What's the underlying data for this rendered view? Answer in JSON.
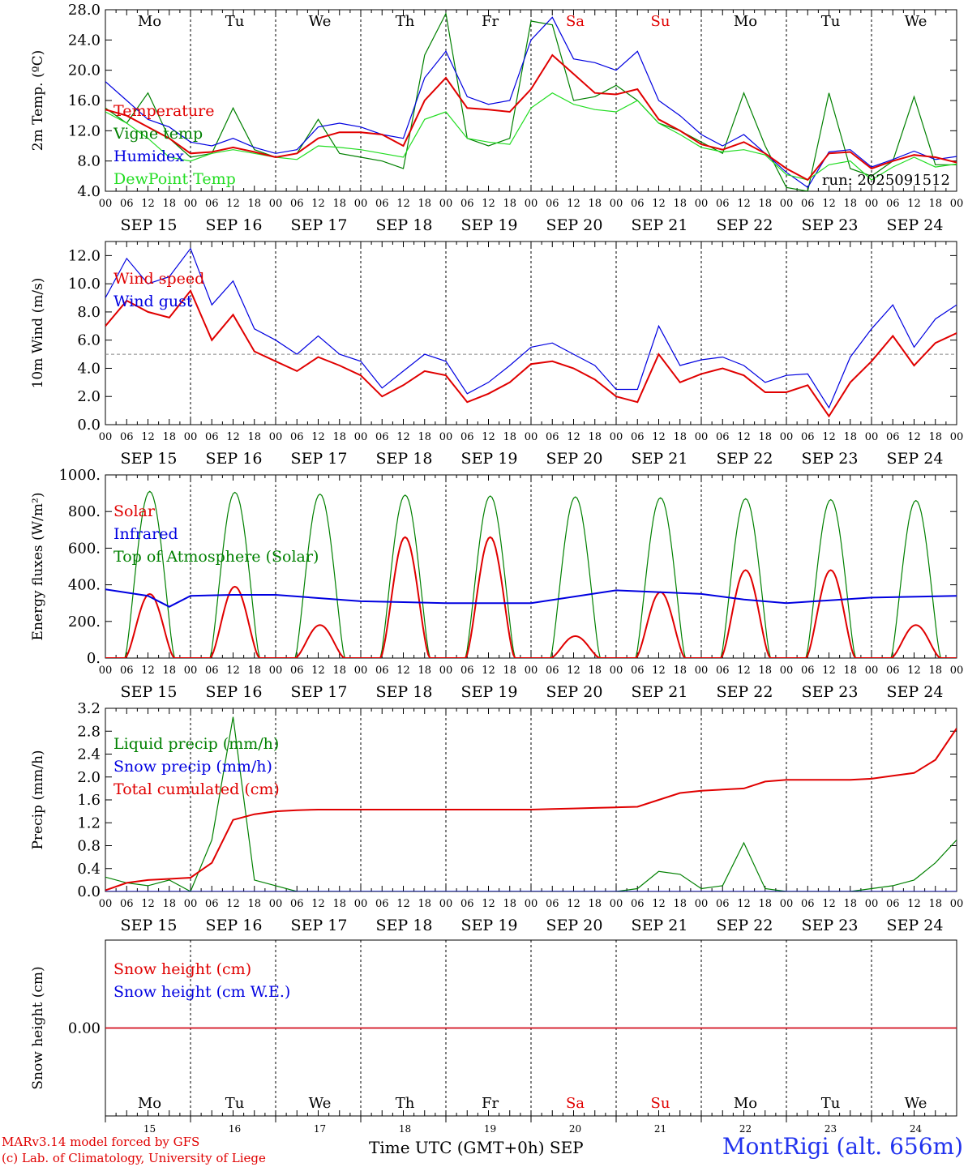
{
  "footer": {
    "credit_line1": "MARv3.14 model forced by GFS",
    "credit_line2": "(c) Lab. of Climatology, University of Liege",
    "x_title": "Time UTC (GMT+0h) SEP",
    "station": "MontRigi (alt. 656m)"
  },
  "day_abbrev": [
    "Mo",
    "Tu",
    "We",
    "Th",
    "Fr",
    "Sa",
    "Su",
    "Mo",
    "Tu",
    "We"
  ],
  "day_abbrev_colors": [
    "#000000",
    "#000000",
    "#000000",
    "#000000",
    "#000000",
    "#e00000",
    "#e00000",
    "#000000",
    "#000000",
    "#000000"
  ],
  "date_labels": [
    "SEP 15",
    "SEP 16",
    "SEP 17",
    "SEP 18",
    "SEP 19",
    "SEP 20",
    "SEP 21",
    "SEP 22",
    "SEP 23",
    "SEP 24"
  ],
  "bottom_day_numbers": [
    "15",
    "16",
    "17",
    "18",
    "19",
    "20",
    "21",
    "22",
    "23",
    "24"
  ],
  "hour_ticks": [
    "00",
    "06",
    "12",
    "18"
  ],
  "chart_data": [
    {
      "type": "line",
      "ylabel": "2m Temp. (ºC)",
      "ylim": [
        4.0,
        28.0
      ],
      "yticks": [
        "4.0",
        "8.0",
        "12.0",
        "16.0",
        "20.0",
        "24.0",
        "28.0"
      ],
      "annotation": "run: 2025091512",
      "x_hours": [
        0,
        6,
        12,
        18,
        24,
        30,
        36,
        42,
        48,
        54,
        60,
        66,
        72,
        78,
        84,
        90,
        96,
        102,
        108,
        114,
        120,
        126,
        132,
        138,
        144,
        150,
        156,
        162,
        168,
        174,
        180,
        186,
        192,
        198,
        204,
        210,
        216,
        222,
        228,
        234,
        240
      ],
      "series": [
        {
          "name": "Temperature",
          "color": "#e00000",
          "width": 2,
          "values": [
            14.8,
            14.0,
            12.5,
            11.0,
            9.0,
            9.2,
            9.8,
            9.2,
            8.5,
            9.0,
            11.0,
            11.8,
            11.8,
            11.5,
            10.0,
            16.0,
            19.0,
            15.0,
            14.8,
            14.5,
            17.5,
            22.0,
            19.5,
            17.0,
            16.8,
            17.5,
            13.5,
            12.0,
            10.2,
            9.5,
            10.5,
            9.0,
            7.0,
            5.5,
            9.0,
            9.2,
            7.0,
            8.0,
            8.8,
            8.5,
            7.8
          ]
        },
        {
          "name": "Vigne temp",
          "color": "#008000",
          "width": 1.2,
          "values": [
            15.0,
            13.0,
            17.0,
            11.0,
            8.5,
            9.0,
            15.0,
            9.5,
            8.5,
            9.0,
            13.5,
            9.0,
            8.5,
            8.0,
            7.0,
            22.0,
            27.5,
            11.0,
            10.0,
            11.0,
            26.5,
            26.0,
            16.0,
            16.5,
            18.0,
            16.0,
            13.0,
            12.0,
            10.5,
            9.0,
            17.0,
            10.0,
            4.5,
            4.0,
            17.0,
            7.0,
            6.0,
            8.0,
            16.5,
            7.5,
            7.5
          ]
        },
        {
          "name": "Humidex",
          "color": "#0000e0",
          "width": 1.2,
          "values": [
            18.5,
            16.0,
            13.5,
            12.5,
            10.5,
            10.0,
            11.0,
            9.8,
            9.0,
            9.5,
            12.5,
            13.0,
            12.5,
            11.5,
            11.0,
            19.0,
            22.5,
            16.5,
            15.5,
            16.0,
            24.0,
            27.0,
            21.5,
            21.0,
            20.0,
            22.5,
            16.0,
            14.0,
            11.5,
            10.0,
            11.5,
            9.0,
            6.5,
            4.5,
            9.2,
            9.5,
            7.2,
            8.2,
            9.3,
            8.2,
            8.6
          ]
        },
        {
          "name": "DewPoint Temp",
          "color": "#22dd22",
          "width": 1.2,
          "values": [
            14.5,
            13.0,
            11.0,
            8.5,
            8.0,
            9.0,
            9.5,
            9.0,
            8.5,
            8.2,
            10.0,
            9.8,
            9.5,
            9.0,
            8.5,
            13.5,
            14.5,
            11.0,
            10.5,
            10.2,
            15.0,
            17.0,
            15.5,
            14.8,
            14.5,
            16.0,
            13.0,
            11.5,
            9.8,
            9.2,
            9.5,
            8.8,
            6.2,
            5.5,
            7.5,
            8.0,
            5.5,
            7.2,
            8.5,
            7.2,
            7.6
          ]
        }
      ]
    },
    {
      "type": "line",
      "ylabel": "10m Wind (m/s)",
      "ylim": [
        0.0,
        13.0
      ],
      "yticks": [
        "0.0",
        "2.0",
        "4.0",
        "6.0",
        "8.0",
        "10.0",
        "12.0"
      ],
      "reference_line": 5.0,
      "x_hours": [
        0,
        6,
        12,
        18,
        24,
        30,
        36,
        42,
        48,
        54,
        60,
        66,
        72,
        78,
        84,
        90,
        96,
        102,
        108,
        114,
        120,
        126,
        132,
        138,
        144,
        150,
        156,
        162,
        168,
        174,
        180,
        186,
        192,
        198,
        204,
        210,
        216,
        222,
        228,
        234,
        240
      ],
      "series": [
        {
          "name": "Wind speed",
          "color": "#e00000",
          "width": 2,
          "values": [
            7.0,
            8.8,
            8.0,
            7.6,
            9.5,
            6.0,
            7.8,
            5.2,
            4.5,
            3.8,
            4.8,
            4.2,
            3.5,
            2.0,
            2.8,
            3.8,
            3.5,
            1.6,
            2.2,
            3.0,
            4.3,
            4.5,
            4.0,
            3.2,
            2.0,
            1.6,
            5.0,
            3.0,
            3.6,
            4.0,
            3.5,
            2.3,
            2.3,
            2.8,
            0.6,
            3.0,
            4.5,
            6.3,
            4.2,
            5.8,
            6.5
          ]
        },
        {
          "name": "Wind gust",
          "color": "#0000e0",
          "width": 1.2,
          "values": [
            9.0,
            11.8,
            10.0,
            10.5,
            12.5,
            8.5,
            10.2,
            6.8,
            6.0,
            5.0,
            6.3,
            5.0,
            4.5,
            2.6,
            3.8,
            5.0,
            4.5,
            2.2,
            3.0,
            4.2,
            5.5,
            5.8,
            5.0,
            4.2,
            2.5,
            2.5,
            7.0,
            4.2,
            4.6,
            4.8,
            4.2,
            3.0,
            3.5,
            3.6,
            1.2,
            4.8,
            6.8,
            8.5,
            5.5,
            7.5,
            8.5
          ]
        }
      ]
    },
    {
      "type": "line",
      "ylabel": "Energy fluxes (W/m²)",
      "ylim": [
        0,
        1000
      ],
      "yticks": [
        "0.",
        "200.",
        "400.",
        "600.",
        "800.",
        "1000."
      ],
      "legend": [
        "Solar",
        "Infrared",
        "Top of Atmosphere (Solar)"
      ],
      "toa_peaks": [
        910,
        905,
        895,
        890,
        885,
        880,
        875,
        870,
        865,
        860
      ],
      "solar_peaks": [
        350,
        390,
        180,
        660,
        660,
        120,
        360,
        480,
        480,
        180
      ],
      "infrared": {
        "x_hours": [
          0,
          12,
          18,
          24,
          36,
          48,
          72,
          96,
          120,
          144,
          168,
          180,
          192,
          216,
          240
        ],
        "values": [
          375,
          340,
          280,
          340,
          345,
          345,
          310,
          300,
          300,
          370,
          350,
          320,
          300,
          330,
          340
        ]
      },
      "colors": {
        "solar": "#e00000",
        "infrared": "#0000e0",
        "toa": "#008000"
      }
    },
    {
      "type": "line",
      "ylabel": "Precip (mm/h)",
      "ylim": [
        0.0,
        3.2
      ],
      "yticks": [
        "0.0",
        "0.4",
        "0.8",
        "1.2",
        "1.6",
        "2.0",
        "2.4",
        "2.8",
        "3.2"
      ],
      "legend": [
        "Liquid precip (mm/h)",
        "Snow precip (mm/h)",
        "Total cumulated (cm)"
      ],
      "x_hours": [
        0,
        6,
        12,
        18,
        24,
        30,
        36,
        42,
        48,
        54,
        60,
        66,
        72,
        78,
        84,
        90,
        96,
        102,
        108,
        114,
        120,
        126,
        132,
        138,
        144,
        150,
        156,
        162,
        168,
        174,
        180,
        186,
        192,
        198,
        204,
        210,
        216,
        222,
        228,
        234,
        240
      ],
      "series": [
        {
          "name": "Liquid precip (mm/h)",
          "color": "#008000",
          "width": 1.2,
          "values": [
            0.25,
            0.15,
            0.1,
            0.2,
            0.0,
            0.9,
            3.05,
            0.2,
            0.1,
            0.0,
            0.0,
            0.0,
            0.0,
            0.0,
            0.0,
            0.0,
            0.0,
            0.0,
            0.0,
            0.0,
            0.0,
            0.0,
            0.0,
            0.0,
            0.0,
            0.05,
            0.35,
            0.3,
            0.05,
            0.1,
            0.85,
            0.05,
            0.0,
            0.0,
            0.0,
            0.0,
            0.05,
            0.1,
            0.2,
            0.5,
            0.9
          ]
        },
        {
          "name": "Snow precip (mm/h)",
          "color": "#0000e0",
          "width": 1.2,
          "values": [
            0,
            0,
            0,
            0,
            0,
            0,
            0,
            0,
            0,
            0,
            0,
            0,
            0,
            0,
            0,
            0,
            0,
            0,
            0,
            0,
            0,
            0,
            0,
            0,
            0,
            0,
            0,
            0,
            0,
            0,
            0,
            0,
            0,
            0,
            0,
            0,
            0,
            0,
            0,
            0,
            0
          ]
        },
        {
          "name": "Total cumulated (cm)",
          "color": "#e00000",
          "width": 2,
          "values": [
            0.02,
            0.15,
            0.2,
            0.22,
            0.24,
            0.5,
            1.25,
            1.35,
            1.4,
            1.42,
            1.43,
            1.43,
            1.43,
            1.43,
            1.43,
            1.43,
            1.43,
            1.43,
            1.43,
            1.43,
            1.43,
            1.44,
            1.45,
            1.46,
            1.47,
            1.48,
            1.6,
            1.72,
            1.76,
            1.78,
            1.8,
            1.92,
            1.95,
            1.95,
            1.95,
            1.95,
            1.97,
            2.02,
            2.07,
            2.3,
            2.85
          ]
        }
      ]
    },
    {
      "type": "line",
      "ylabel": "Snow height (cm)",
      "ylim": [
        -1.0,
        1.0
      ],
      "yticks": [
        "0.00"
      ],
      "legend": [
        "Snow height (cm)",
        "Snow height (cm W.E.)"
      ],
      "x_hours": [
        0,
        240
      ],
      "series": [
        {
          "name": "Snow height (cm)",
          "color": "#e00000",
          "width": 1.5,
          "values": [
            0.0,
            0.0
          ]
        },
        {
          "name": "Snow height (cm W.E.)",
          "color": "#0000e0",
          "width": 1.2,
          "values": [
            0.0,
            0.0
          ]
        }
      ]
    }
  ]
}
